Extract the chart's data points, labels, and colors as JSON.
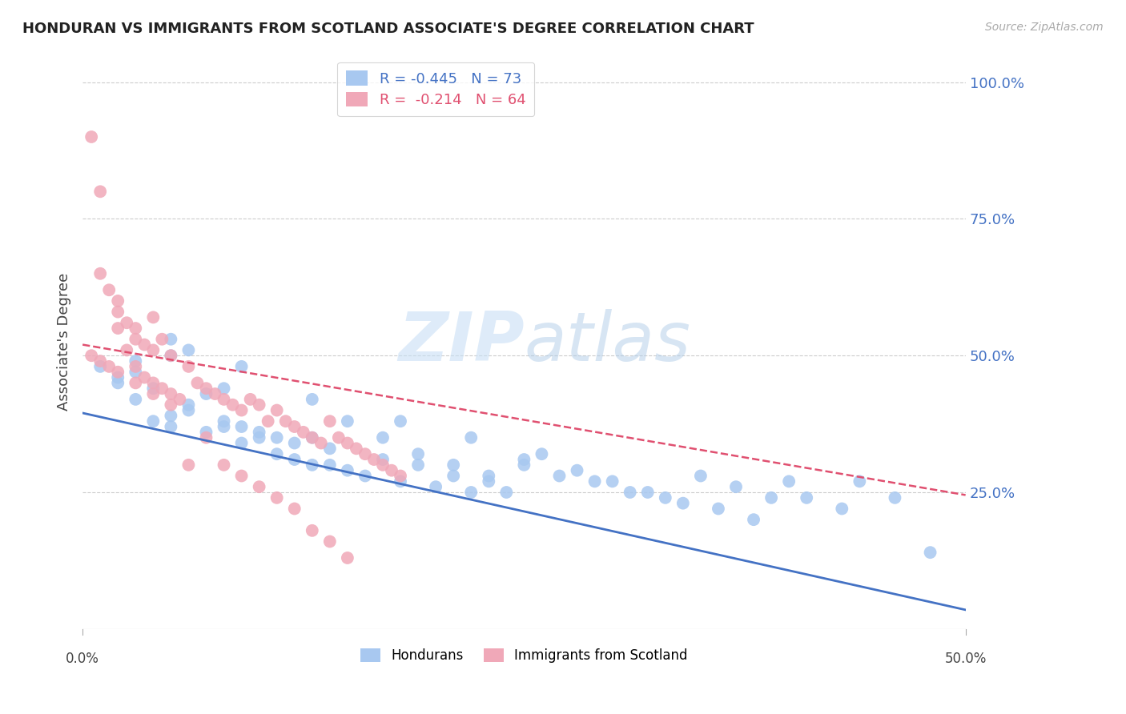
{
  "title": "HONDURAN VS IMMIGRANTS FROM SCOTLAND ASSOCIATE'S DEGREE CORRELATION CHART",
  "source": "Source: ZipAtlas.com",
  "ylabel": "Associate's Degree",
  "watermark_zip": "ZIP",
  "watermark_atlas": "atlas",
  "honduran_color": "#a8c8f0",
  "scotland_color": "#f0a8b8",
  "honduran_line_color": "#4472c4",
  "scotland_line_color": "#e05070",
  "grid_color": "#cccccc",
  "background_color": "#ffffff",
  "right_axis_color": "#4472c4",
  "honduran_R": -0.445,
  "honduran_N": 73,
  "scotland_R": -0.214,
  "scotland_N": 64,
  "honduran_intercept": 0.395,
  "honduran_slope": -0.72,
  "scotland_intercept": 0.52,
  "scotland_slope": -0.55,
  "x_lim": [
    0.0,
    0.5
  ],
  "y_lim": [
    0.0,
    1.05
  ],
  "honduran_points_x": [
    0.02,
    0.04,
    0.01,
    0.03,
    0.06,
    0.02,
    0.03,
    0.05,
    0.07,
    0.08,
    0.04,
    0.05,
    0.06,
    0.08,
    0.09,
    0.1,
    0.11,
    0.12,
    0.13,
    0.14,
    0.05,
    0.07,
    0.09,
    0.11,
    0.13,
    0.15,
    0.17,
    0.19,
    0.21,
    0.23,
    0.06,
    0.08,
    0.1,
    0.12,
    0.14,
    0.16,
    0.18,
    0.2,
    0.22,
    0.24,
    0.25,
    0.27,
    0.29,
    0.31,
    0.33,
    0.35,
    0.37,
    0.39,
    0.41,
    0.43,
    0.15,
    0.17,
    0.19,
    0.21,
    0.23,
    0.25,
    0.28,
    0.3,
    0.32,
    0.34,
    0.36,
    0.38,
    0.44,
    0.46,
    0.48,
    0.03,
    0.05,
    0.09,
    0.13,
    0.18,
    0.22,
    0.26,
    0.4
  ],
  "honduran_points_y": [
    0.45,
    0.44,
    0.48,
    0.42,
    0.51,
    0.46,
    0.47,
    0.5,
    0.43,
    0.44,
    0.38,
    0.37,
    0.4,
    0.38,
    0.37,
    0.36,
    0.35,
    0.34,
    0.35,
    0.33,
    0.39,
    0.36,
    0.34,
    0.32,
    0.3,
    0.29,
    0.31,
    0.3,
    0.28,
    0.27,
    0.41,
    0.37,
    0.35,
    0.31,
    0.3,
    0.28,
    0.27,
    0.26,
    0.25,
    0.25,
    0.3,
    0.28,
    0.27,
    0.25,
    0.24,
    0.28,
    0.26,
    0.24,
    0.24,
    0.22,
    0.38,
    0.35,
    0.32,
    0.3,
    0.28,
    0.31,
    0.29,
    0.27,
    0.25,
    0.23,
    0.22,
    0.2,
    0.27,
    0.24,
    0.14,
    0.49,
    0.53,
    0.48,
    0.42,
    0.38,
    0.35,
    0.32,
    0.27
  ],
  "scotland_points_x": [
    0.005,
    0.01,
    0.01,
    0.015,
    0.02,
    0.02,
    0.025,
    0.03,
    0.03,
    0.035,
    0.04,
    0.04,
    0.045,
    0.05,
    0.005,
    0.01,
    0.015,
    0.02,
    0.025,
    0.03,
    0.035,
    0.04,
    0.045,
    0.05,
    0.055,
    0.06,
    0.065,
    0.07,
    0.075,
    0.08,
    0.085,
    0.09,
    0.095,
    0.1,
    0.105,
    0.11,
    0.115,
    0.12,
    0.125,
    0.13,
    0.135,
    0.14,
    0.145,
    0.15,
    0.155,
    0.16,
    0.165,
    0.17,
    0.175,
    0.18,
    0.02,
    0.03,
    0.04,
    0.05,
    0.06,
    0.07,
    0.08,
    0.09,
    0.1,
    0.11,
    0.12,
    0.13,
    0.14,
    0.15
  ],
  "scotland_points_y": [
    0.9,
    0.8,
    0.65,
    0.62,
    0.6,
    0.58,
    0.56,
    0.55,
    0.53,
    0.52,
    0.51,
    0.57,
    0.53,
    0.5,
    0.5,
    0.49,
    0.48,
    0.47,
    0.51,
    0.48,
    0.46,
    0.45,
    0.44,
    0.43,
    0.42,
    0.48,
    0.45,
    0.44,
    0.43,
    0.42,
    0.41,
    0.4,
    0.42,
    0.41,
    0.38,
    0.4,
    0.38,
    0.37,
    0.36,
    0.35,
    0.34,
    0.38,
    0.35,
    0.34,
    0.33,
    0.32,
    0.31,
    0.3,
    0.29,
    0.28,
    0.55,
    0.45,
    0.43,
    0.41,
    0.3,
    0.35,
    0.3,
    0.28,
    0.26,
    0.24,
    0.22,
    0.18,
    0.16,
    0.13
  ]
}
